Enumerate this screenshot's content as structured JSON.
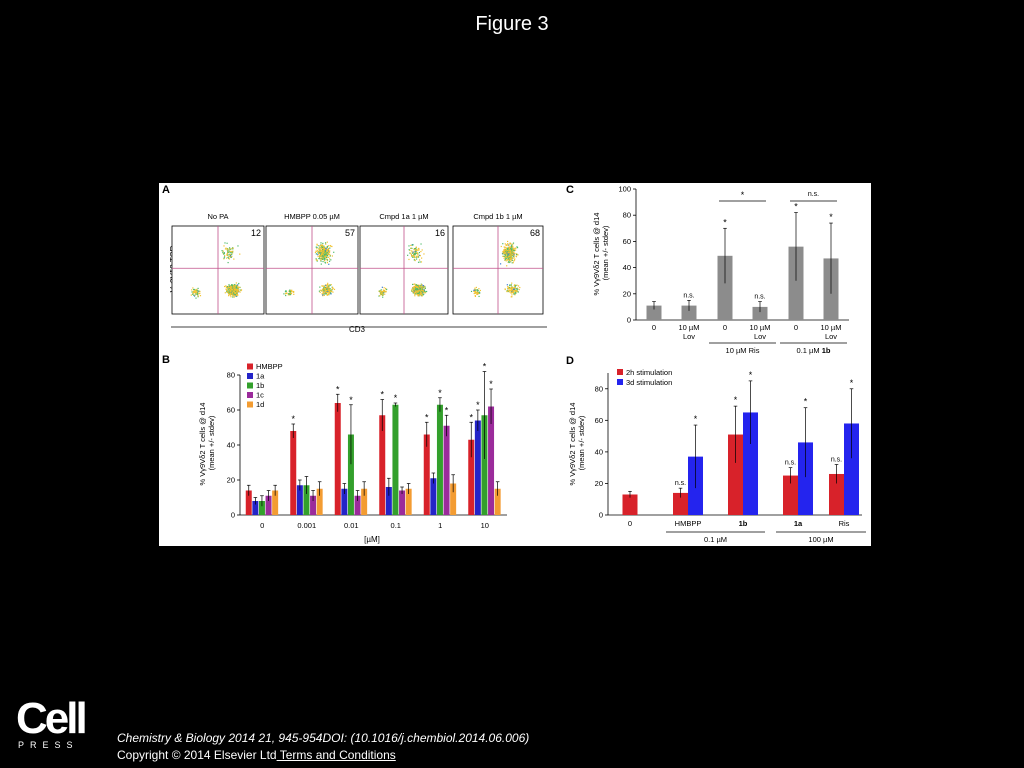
{
  "slide": {
    "title": "Figure 3",
    "citation": "Chemistry & Biology 2014 21, 945-954DOI: (10.1016/j.chembiol.2014.06.006)",
    "copyright": "Copyright © 2014 Elsevier Ltd",
    "terms_link": " Terms and Conditions",
    "logo_word": "Cell",
    "logo_press": "PRESS"
  },
  "panel_a": {
    "label": "A",
    "y_axis_label": "Vγ9Vδ2 TCR",
    "x_axis_label": "CD3",
    "plots": [
      {
        "title": "No PA",
        "percent": "12"
      },
      {
        "title": "HMBPP 0.05 µM",
        "percent": "57"
      },
      {
        "title": "Cmpd 1a 1 µM",
        "percent": "16"
      },
      {
        "title": "Cmpd 1b 1 µM",
        "percent": "68"
      }
    ]
  },
  "chart_data": [
    {
      "panel": "B",
      "type": "bar",
      "label": "B",
      "ylabel": "% Vγ9Vδ2 T cells @ d14 (mean +/- stdev)",
      "xlabel": "[µM]",
      "ylim": [
        0,
        80
      ],
      "yticks": [
        "0",
        "20",
        "40",
        "60",
        "80"
      ],
      "categories": [
        "0",
        "0.001",
        "0.01",
        "0.1",
        "1",
        "10"
      ],
      "legend_position": "top-left",
      "series": [
        {
          "name": "HMBPP",
          "color": "#d8222a",
          "values": [
            14,
            48,
            64,
            57,
            46,
            43
          ],
          "errors": [
            3,
            4,
            5,
            9,
            7,
            10
          ],
          "stars": [
            false,
            true,
            true,
            true,
            true,
            true
          ]
        },
        {
          "name": "1a",
          "color": "#2424c8",
          "values": [
            8,
            17,
            15,
            16,
            21,
            54
          ],
          "errors": [
            2,
            3,
            3,
            5,
            3,
            6
          ],
          "stars": [
            false,
            false,
            false,
            false,
            false,
            true
          ]
        },
        {
          "name": "1b",
          "color": "#33a02c",
          "values": [
            8,
            17,
            46,
            63,
            63,
            57
          ],
          "errors": [
            3,
            5,
            17,
            1,
            4,
            25
          ],
          "stars": [
            false,
            false,
            true,
            true,
            true,
            true
          ]
        },
        {
          "name": "1c",
          "color": "#9b2b9b",
          "values": [
            11,
            11,
            11,
            14,
            51,
            62
          ],
          "errors": [
            3,
            3,
            3,
            2,
            6,
            10
          ],
          "stars": [
            false,
            false,
            false,
            false,
            true,
            true
          ]
        },
        {
          "name": "1d",
          "color": "#f39c32",
          "values": [
            14,
            15,
            15,
            15,
            18,
            15
          ],
          "errors": [
            3,
            4,
            4,
            3,
            5,
            4
          ],
          "stars": [
            false,
            false,
            false,
            false,
            false,
            false
          ]
        }
      ]
    },
    {
      "panel": "C",
      "type": "bar",
      "label": "C",
      "ylabel": "% Vγ9Vδ2 T cells @ d14 (mean +/- stdev)",
      "ylim": [
        0,
        100
      ],
      "yticks": [
        "0",
        "20",
        "40",
        "60",
        "80",
        "100"
      ],
      "color": "#8c8c8c",
      "categories": [
        [
          "0"
        ],
        [
          "10 µM",
          "Lov"
        ],
        [
          "0"
        ],
        [
          "10 µM",
          "Lov"
        ],
        [
          "0"
        ],
        [
          "10 µM",
          "Lov"
        ]
      ],
      "values": [
        11,
        11,
        49,
        10,
        56,
        47
      ],
      "errors": [
        3,
        4,
        21,
        4,
        26,
        27
      ],
      "bar_annotations": [
        "",
        "n.s.",
        "*",
        "n.s.",
        "*",
        "*"
      ],
      "groups": [
        {
          "label": "10 µM Ris",
          "from": 2,
          "to": 3
        },
        {
          "label_prefix": "0.1 µM ",
          "label_bold": "1b",
          "from": 4,
          "to": 5
        }
      ],
      "comparisons": [
        {
          "from": 2,
          "to": 3,
          "label": "*"
        },
        {
          "from": 4,
          "to": 5,
          "label": "n.s."
        }
      ]
    },
    {
      "panel": "D",
      "type": "bar",
      "label": "D",
      "ylabel": "% Vγ9Vδ2 T cells @ d14 (mean +/- stdev)",
      "ylim": [
        0,
        90
      ],
      "yticks": [
        "0",
        "20",
        "40",
        "60",
        "80"
      ],
      "categories": [
        "0",
        "HMBPP",
        "1b",
        "1a",
        "Ris"
      ],
      "bold_categories": [
        false,
        false,
        true,
        true,
        false
      ],
      "legend_position": "top-left",
      "series": [
        {
          "name": "2h stimulation",
          "color": "#d8222a",
          "values": [
            13,
            14,
            51,
            25,
            26
          ],
          "errors": [
            2,
            3,
            18,
            5,
            6
          ],
          "labels": [
            "",
            "n.s.",
            "*",
            "n.s.",
            "n.s."
          ]
        },
        {
          "name": "3d stimulation",
          "color": "#2424ee",
          "values": [
            null,
            37,
            65,
            46,
            58
          ],
          "errors": [
            0,
            20,
            20,
            22,
            22
          ],
          "labels": [
            "",
            "*",
            "*",
            "*",
            "*"
          ]
        }
      ],
      "groups": [
        {
          "label": "0.1 µM",
          "from": 1,
          "to": 2
        },
        {
          "label": "100 µM",
          "from": 3,
          "to": 4
        }
      ]
    }
  ]
}
